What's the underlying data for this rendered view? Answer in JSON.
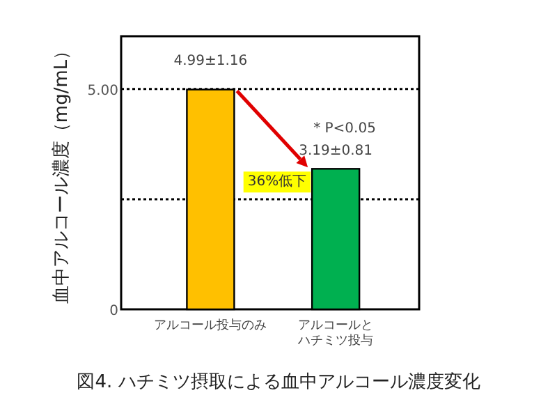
{
  "chart_data": {
    "type": "bar",
    "title": "図4. ハチミツ摂取による血中アルコール濃度変化",
    "ylabel": "血中アルコール濃度（mg/mL）",
    "categories": [
      "アルコール投与のみ",
      "アルコールとハチミツ投与"
    ],
    "values": [
      4.99,
      3.19
    ],
    "colors": [
      "#ffc000",
      "#00b050"
    ],
    "value_labels": [
      "4.99±1.16",
      "3.19±0.81"
    ],
    "annotations": [
      "* P<0.05",
      {
        "text": "36%低下",
        "x": "アルコールとハチミツ投与",
        "y": 3.19
      }
    ],
    "ylim": [
      0,
      6.2
    ],
    "yticks": [
      0,
      {
        "value": 2.5,
        "label": null
      },
      {
        "value": 5,
        "label": "5.00"
      }
    ],
    "grid": "y"
  }
}
